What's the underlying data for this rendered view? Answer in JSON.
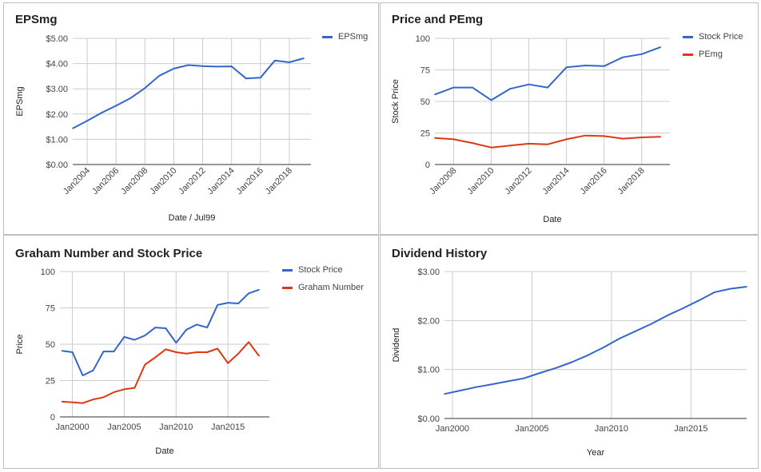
{
  "colors": {
    "blue": "#3366cc",
    "red": "#dc3912",
    "grid": "#cccccc",
    "axis": "#333333"
  },
  "chart_data": [
    {
      "type": "line",
      "title": "EPSmg",
      "xlabel": "Date / Jul99",
      "ylabel": "EPSmg",
      "x_ticks": [
        "Jan2004",
        "Jan2006",
        "Jan2008",
        "Jan2010",
        "Jan2012",
        "Jan2014",
        "Jan2016",
        "Jan2018"
      ],
      "y_ticks": [
        "$0.00",
        "$1.00",
        "$2.00",
        "$3.00",
        "$4.00",
        "$5.00"
      ],
      "ylim": [
        0,
        5
      ],
      "xlim": [
        2003,
        2019.5
      ],
      "legend_position": "right",
      "grid": true,
      "series": [
        {
          "name": "EPSmg",
          "color": "#3366cc",
          "x": [
            2003,
            2004,
            2005,
            2006,
            2007,
            2008,
            2009,
            2010,
            2011,
            2012,
            2013,
            2014,
            2015,
            2016,
            2017,
            2018,
            2019
          ],
          "y": [
            1.43,
            1.73,
            2.05,
            2.33,
            2.63,
            3.03,
            3.52,
            3.8,
            3.94,
            3.9,
            3.88,
            3.89,
            3.41,
            3.44,
            4.12,
            4.05,
            4.21
          ]
        }
      ]
    },
    {
      "type": "line",
      "title": "Price and PEmg",
      "xlabel": "Date",
      "ylabel": "Stock Price",
      "x_ticks": [
        "Jan2008",
        "Jan2010",
        "Jan2012",
        "Jan2014",
        "Jan2016",
        "Jan2018"
      ],
      "y_ticks": [
        "0",
        "25",
        "50",
        "75",
        "100"
      ],
      "ylim": [
        0,
        100
      ],
      "xlim": [
        2007,
        2019.5
      ],
      "legend_position": "right",
      "grid": true,
      "series": [
        {
          "name": "Stock Price",
          "color": "#3366cc",
          "x": [
            2007,
            2008,
            2009,
            2010,
            2011,
            2012,
            2013,
            2014,
            2015,
            2016,
            2017,
            2018,
            2019
          ],
          "y": [
            55.5,
            61,
            61,
            51,
            60,
            63.5,
            61,
            77,
            78.5,
            78,
            85,
            87.5,
            93
          ]
        },
        {
          "name": "PEmg",
          "color": "#dc3912",
          "x": [
            2007,
            2008,
            2009,
            2010,
            2011,
            2012,
            2013,
            2014,
            2015,
            2016,
            2017,
            2018,
            2019
          ],
          "y": [
            21,
            20,
            17,
            13.5,
            15,
            16.5,
            16,
            20,
            23,
            22.5,
            20.5,
            21.5,
            22
          ]
        }
      ]
    },
    {
      "type": "line",
      "title": "Graham Number and Stock Price",
      "xlabel": "Date",
      "ylabel": "Price",
      "x_ticks": [
        "Jan2000",
        "Jan2005",
        "Jan2010",
        "Jan2015"
      ],
      "y_ticks": [
        "0",
        "25",
        "50",
        "75",
        "100"
      ],
      "ylim": [
        0,
        100
      ],
      "xlim": [
        1998.8,
        2019
      ],
      "legend_position": "right",
      "grid": true,
      "series": [
        {
          "name": "Stock Price",
          "color": "#3366cc",
          "x": [
            1999,
            2000,
            2001,
            2002,
            2003,
            2004,
            2005,
            2006,
            2007,
            2008,
            2009,
            2010,
            2011,
            2012,
            2013,
            2014,
            2015,
            2016,
            2017,
            2018
          ],
          "y": [
            45.5,
            44.5,
            28.5,
            32,
            45,
            45,
            55,
            53,
            56,
            61.5,
            61,
            51,
            60,
            63.5,
            61.5,
            77,
            78.5,
            78,
            85,
            87.5
          ]
        },
        {
          "name": "Graham Number",
          "color": "#dc3912",
          "x": [
            1999,
            2000,
            2001,
            2002,
            2003,
            2004,
            2005,
            2006,
            2007,
            2008,
            2009,
            2010,
            2011,
            2012,
            2013,
            2014,
            2015,
            2016,
            2017,
            2018
          ],
          "y": [
            10.5,
            10,
            9.5,
            12,
            13.5,
            17,
            19,
            20,
            36,
            41,
            46.5,
            44.5,
            43.5,
            44.5,
            44.5,
            47,
            37,
            43.5,
            51.5,
            42
          ]
        }
      ]
    },
    {
      "type": "line",
      "title": "Dividend History",
      "xlabel": "Year",
      "ylabel": "Dividend",
      "x_ticks": [
        "Jan2000",
        "Jan2005",
        "Jan2010",
        "Jan2015"
      ],
      "y_ticks": [
        "$0.00",
        "$1.00",
        "$2.00",
        "$3.00"
      ],
      "ylim": [
        0,
        3
      ],
      "xlim": [
        1999.5,
        2018.5
      ],
      "legend_position": "none",
      "grid": true,
      "series": [
        {
          "name": "",
          "color": "#3366cc",
          "x": [
            1999.5,
            2000.5,
            2001.5,
            2002.5,
            2003.5,
            2004.5,
            2005.5,
            2006.5,
            2007.5,
            2008.5,
            2009.5,
            2010.5,
            2011.5,
            2012.5,
            2013.5,
            2014.5,
            2015.5,
            2016.5,
            2017.5,
            2018.5
          ],
          "y": [
            0.5,
            0.57,
            0.64,
            0.7,
            0.76,
            0.82,
            0.93,
            1.03,
            1.15,
            1.29,
            1.45,
            1.63,
            1.78,
            1.93,
            2.1,
            2.25,
            2.41,
            2.58,
            2.65,
            2.69
          ]
        }
      ]
    }
  ]
}
